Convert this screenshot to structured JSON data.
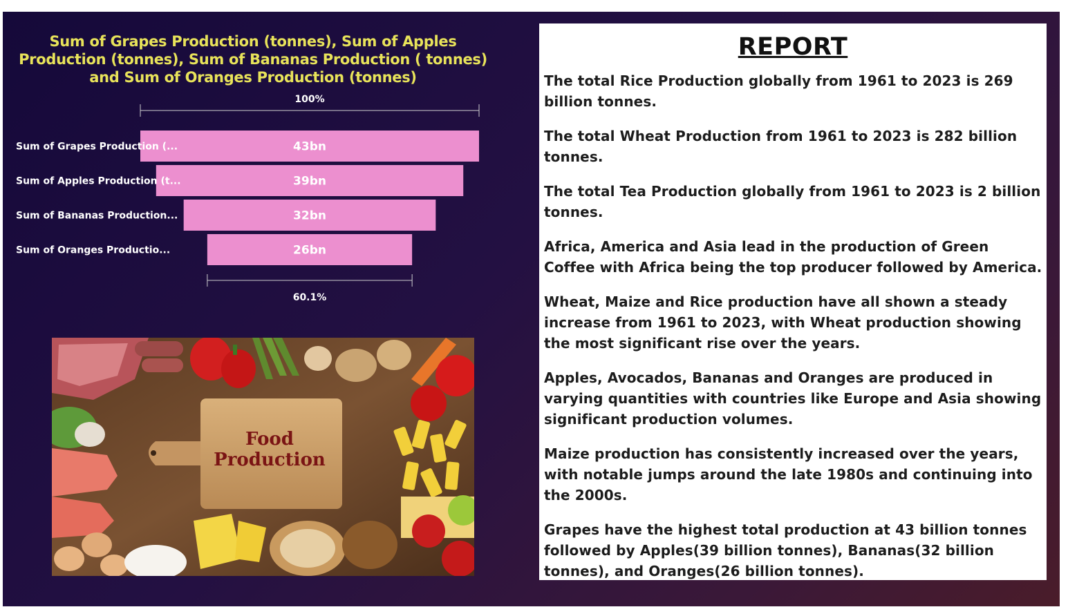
{
  "chart_data": {
    "type": "funnel",
    "title": "Sum of Grapes Production (tonnes), Sum of Apples Production (tonnes), Sum of Bananas Production ( tonnes) and Sum of Oranges Production (tonnes)",
    "categories": [
      "Sum of Grapes Production (...",
      "Sum of Apples Production (t...",
      "Sum of Bananas Production...",
      "Sum of Oranges Productio..."
    ],
    "values": [
      43,
      39,
      32,
      26
    ],
    "value_labels": [
      "43bn",
      "39bn",
      "32bn",
      "26bn"
    ],
    "unit": "bn",
    "top_percent_label": "100%",
    "bottom_percent_label": "60.1%",
    "bar_color": "#ec8fcf"
  },
  "image": {
    "caption_line1": "Food",
    "caption_line2": "Production"
  },
  "report": {
    "title": "REPORT",
    "paragraphs": [
      "The total Rice Production globally from 1961 to 2023 is 269 billion tonnes.",
      "The total Wheat Production from 1961 to 2023 is 282 billion tonnes.",
      "The total Tea Production globally from 1961 to 2023 is 2 billion tonnes.",
      "Africa, America and Asia lead in the production of Green Coffee with Africa being the top producer followed by America.",
      "Wheat, Maize and Rice production have all shown a steady increase from 1961 to 2023, with Wheat production showing the most significant rise over the years.",
      "Apples, Avocados, Bananas and Oranges are produced in varying quantities with countries like Europe and Asia showing significant production volumes.",
      "Maize production has consistently increased over the years, with notable jumps around the late 1980s and continuing into the 2000s.",
      "Grapes have the highest total production at 43 billion tonnes followed by Apples(39 billion tonnes), Bananas(32 billion tonnes), and Oranges(26 billion tonnes)."
    ]
  },
  "colors": {
    "title_yellow": "#e8e35a",
    "background_dark": "#1c0d3c"
  }
}
